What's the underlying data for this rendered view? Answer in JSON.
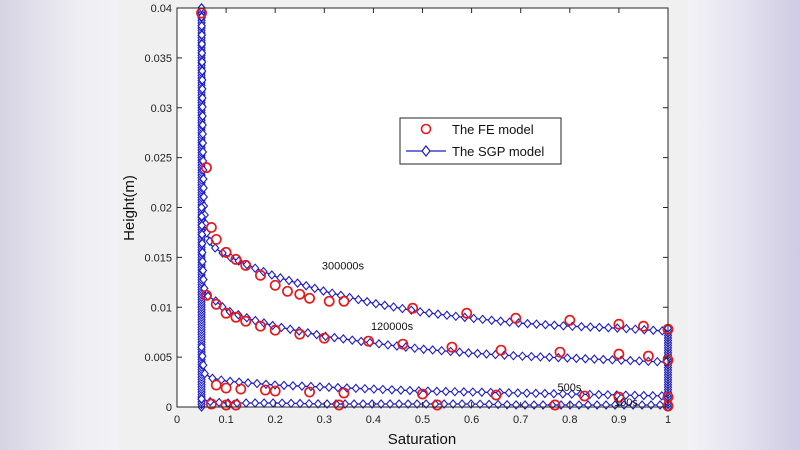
{
  "chart_data": {
    "type": "line",
    "title": "",
    "xlabel": "Saturation",
    "ylabel": "Height(m)",
    "xlim": [
      0,
      1
    ],
    "ylim": [
      0,
      0.04
    ],
    "x_ticks": [
      "0",
      "0.1",
      "0.2",
      "0.3",
      "0.4",
      "0.5",
      "0.6",
      "0.7",
      "0.8",
      "0.9",
      "1"
    ],
    "y_ticks": [
      "0",
      "0.005",
      "0.01",
      "0.015",
      "0.02",
      "0.025",
      "0.03",
      "0.035",
      "0.04"
    ],
    "grid": false,
    "legend_position": "upper-center-right",
    "legend": [
      {
        "label": "The FE model",
        "marker": "circle",
        "color": "#e8191a"
      },
      {
        "label": "The SGP model",
        "marker": "diamond-line",
        "color": "#1c1cc8"
      }
    ],
    "curves": [
      {
        "annotation": "300000s",
        "annotation_at": [
          0.295,
          0.0138
        ],
        "sgp": [
          [
            0.05,
            0.04
          ],
          [
            0.051,
            0.035
          ],
          [
            0.052,
            0.03
          ],
          [
            0.053,
            0.025
          ],
          [
            0.055,
            0.02
          ],
          [
            0.06,
            0.0175
          ],
          [
            0.07,
            0.0162
          ],
          [
            0.1,
            0.0152
          ],
          [
            0.15,
            0.0141
          ],
          [
            0.2,
            0.0131
          ],
          [
            0.3,
            0.0116
          ],
          [
            0.4,
            0.0104
          ],
          [
            0.5,
            0.0095
          ],
          [
            0.6,
            0.0089
          ],
          [
            0.7,
            0.0084
          ],
          [
            0.8,
            0.0081
          ],
          [
            0.9,
            0.0079
          ],
          [
            1.0,
            0.0076
          ]
        ],
        "fe": [
          [
            0.05,
            0.0395
          ],
          [
            0.06,
            0.024
          ],
          [
            0.07,
            0.018
          ],
          [
            0.08,
            0.0168
          ],
          [
            0.1,
            0.0155
          ],
          [
            0.12,
            0.0148
          ],
          [
            0.14,
            0.0142
          ],
          [
            0.17,
            0.0132
          ],
          [
            0.2,
            0.0122
          ],
          [
            0.225,
            0.0116
          ],
          [
            0.25,
            0.0113
          ],
          [
            0.27,
            0.0109
          ],
          [
            0.31,
            0.0106
          ],
          [
            0.34,
            0.0106
          ],
          [
            0.48,
            0.0099
          ],
          [
            0.59,
            0.0094
          ],
          [
            0.69,
            0.0089
          ],
          [
            0.8,
            0.0087
          ],
          [
            0.9,
            0.0083
          ],
          [
            0.95,
            0.0081
          ],
          [
            1.0,
            0.0078
          ]
        ]
      },
      {
        "annotation": "120000s",
        "annotation_at": [
          0.395,
          0.0077
        ],
        "sgp": [
          [
            0.05,
            0.02
          ],
          [
            0.052,
            0.0145
          ],
          [
            0.055,
            0.012
          ],
          [
            0.06,
            0.0112
          ],
          [
            0.08,
            0.0106
          ],
          [
            0.1,
            0.0097
          ],
          [
            0.15,
            0.0088
          ],
          [
            0.2,
            0.0081
          ],
          [
            0.3,
            0.0071
          ],
          [
            0.4,
            0.0064
          ],
          [
            0.5,
            0.0058
          ],
          [
            0.6,
            0.0054
          ],
          [
            0.7,
            0.0051
          ],
          [
            0.8,
            0.0049
          ],
          [
            0.9,
            0.0047
          ],
          [
            1.0,
            0.0045
          ]
        ],
        "fe": [
          [
            0.06,
            0.0112
          ],
          [
            0.08,
            0.0103
          ],
          [
            0.1,
            0.0094
          ],
          [
            0.12,
            0.009
          ],
          [
            0.14,
            0.0086
          ],
          [
            0.17,
            0.0081
          ],
          [
            0.2,
            0.0077
          ],
          [
            0.25,
            0.0073
          ],
          [
            0.3,
            0.0069
          ],
          [
            0.39,
            0.0066
          ],
          [
            0.46,
            0.0063
          ],
          [
            0.56,
            0.006
          ],
          [
            0.66,
            0.0057
          ],
          [
            0.78,
            0.0055
          ],
          [
            0.9,
            0.0053
          ],
          [
            0.96,
            0.0051
          ],
          [
            1.0,
            0.0047
          ]
        ]
      },
      {
        "annotation": "500s",
        "annotation_at": [
          0.775,
          0.0016
        ],
        "sgp": [
          [
            0.05,
            0.006
          ],
          [
            0.055,
            0.0034
          ],
          [
            0.07,
            0.0029
          ],
          [
            0.1,
            0.0026
          ],
          [
            0.15,
            0.0024
          ],
          [
            0.2,
            0.0022
          ],
          [
            0.3,
            0.002
          ],
          [
            0.4,
            0.0018
          ],
          [
            0.5,
            0.0016
          ],
          [
            0.6,
            0.0015
          ],
          [
            0.7,
            0.0014
          ],
          [
            0.8,
            0.0013
          ],
          [
            0.9,
            0.0012
          ],
          [
            1.0,
            0.0011
          ]
        ],
        "fe": [
          [
            0.08,
            0.0022
          ],
          [
            0.1,
            0.0019
          ],
          [
            0.13,
            0.0018
          ],
          [
            0.18,
            0.0017
          ],
          [
            0.2,
            0.0016
          ],
          [
            0.27,
            0.0015
          ],
          [
            0.34,
            0.0014
          ],
          [
            0.5,
            0.0013
          ],
          [
            0.65,
            0.0012
          ],
          [
            0.83,
            0.0011
          ],
          [
            0.9,
            0.001
          ],
          [
            1.0,
            0.001
          ]
        ]
      },
      {
        "annotation": "100s",
        "annotation_at": [
          0.89,
          0.0001
        ],
        "sgp": [
          [
            0.05,
            0.0008
          ],
          [
            0.07,
            0.0005
          ],
          [
            0.1,
            0.0004
          ],
          [
            0.2,
            0.0004
          ],
          [
            0.3,
            0.0003
          ],
          [
            0.4,
            0.0003
          ],
          [
            0.5,
            0.0003
          ],
          [
            0.6,
            0.0003
          ],
          [
            0.7,
            0.0002
          ],
          [
            0.8,
            0.0002
          ],
          [
            0.9,
            0.0002
          ],
          [
            1.0,
            0.0002
          ]
        ],
        "fe": [
          [
            0.07,
            0.0003
          ],
          [
            0.1,
            0.0002
          ],
          [
            0.12,
            0.0002
          ],
          [
            0.33,
            0.0002
          ],
          [
            0.53,
            0.0002
          ],
          [
            0.77,
            0.0002
          ],
          [
            1.0,
            0.0001
          ]
        ]
      }
    ],
    "vertical_segments": [
      {
        "x": 0.05,
        "y_from": 0.0,
        "y_to": 0.04
      },
      {
        "x": 1.0,
        "y_from": 0.0,
        "y_to": 0.0079
      }
    ]
  }
}
